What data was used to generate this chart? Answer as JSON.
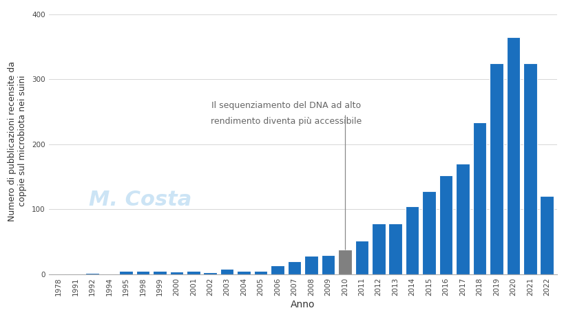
{
  "years": [
    1978,
    1991,
    1992,
    1994,
    1995,
    1998,
    1999,
    2000,
    2001,
    2002,
    2003,
    2004,
    2005,
    2006,
    2007,
    2008,
    2009,
    2010,
    2011,
    2012,
    2013,
    2014,
    2015,
    2016,
    2017,
    2018,
    2019,
    2020,
    2021,
    2022
  ],
  "values": [
    1,
    1,
    2,
    1,
    5,
    5,
    5,
    4,
    5,
    3,
    8,
    5,
    5,
    14,
    20,
    28,
    30,
    38,
    52,
    78,
    78,
    105,
    128,
    152,
    170,
    234,
    325,
    365,
    325,
    120
  ],
  "bar_colors": [
    "#1a6fbe",
    "#1a6fbe",
    "#1a6fbe",
    "#1a6fbe",
    "#1a6fbe",
    "#1a6fbe",
    "#1a6fbe",
    "#1a6fbe",
    "#1a6fbe",
    "#1a6fbe",
    "#1a6fbe",
    "#1a6fbe",
    "#1a6fbe",
    "#1a6fbe",
    "#1a6fbe",
    "#1a6fbe",
    "#1a6fbe",
    "#808080",
    "#1a6fbe",
    "#1a6fbe",
    "#1a6fbe",
    "#1a6fbe",
    "#1a6fbe",
    "#1a6fbe",
    "#1a6fbe",
    "#1a6fbe",
    "#1a6fbe",
    "#1a6fbe",
    "#1a6fbe",
    "#1a6fbe"
  ],
  "annotation_line1": "Il sequenziamento del DNA ad alto",
  "annotation_line2": "rendimento diventa più accessibile",
  "vline_year_idx": 17,
  "xlabel": "Anno",
  "ylabel": "Numero di pubblicazioni recensite da\ncoppie sul microbiota nei suini",
  "ylim": [
    0,
    410
  ],
  "yticks": [
    0,
    100,
    200,
    300,
    400
  ],
  "background_color": "#ffffff",
  "grid_color": "#d0d0d0",
  "bar_edge_color": "#ffffff",
  "axis_label_fontsize": 9,
  "tick_fontsize": 7.5,
  "annotation_fontsize": 9,
  "watermark_text": "M. Costa",
  "watermark_color": "#cce4f5",
  "watermark_fontsize": 22
}
